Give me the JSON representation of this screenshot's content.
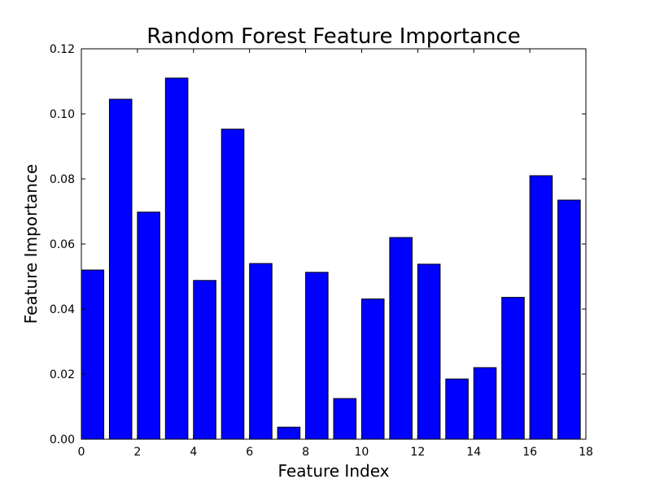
{
  "chart_data": {
    "type": "bar",
    "title": "Random Forest Feature Importance",
    "xlabel": "Feature Index",
    "ylabel": "Feature Importance",
    "xlim": [
      0,
      18
    ],
    "ylim": [
      0,
      0.12
    ],
    "xticks": [
      "0",
      "2",
      "4",
      "6",
      "8",
      "10",
      "12",
      "14",
      "16",
      "18"
    ],
    "yticks": [
      "0.00",
      "0.02",
      "0.04",
      "0.06",
      "0.08",
      "0.10",
      "0.12"
    ],
    "categories": [
      0,
      1,
      2,
      3,
      4,
      5,
      6,
      7,
      8,
      9,
      10,
      11,
      12,
      13,
      14,
      15,
      16,
      17
    ],
    "values": [
      0.052,
      0.1045,
      0.0698,
      0.111,
      0.0488,
      0.0953,
      0.054,
      0.0037,
      0.0513,
      0.0125,
      0.0431,
      0.062,
      0.0538,
      0.0185,
      0.022,
      0.0436,
      0.081,
      0.0735
    ],
    "bar_color": "#0000ff",
    "grid": false
  }
}
